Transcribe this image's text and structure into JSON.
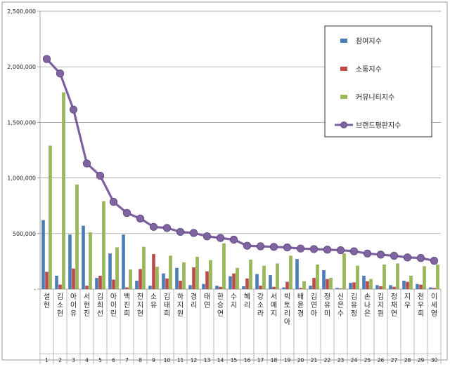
{
  "chart_data": {
    "type": "bar",
    "ylim": [
      0,
      2500000
    ],
    "yticks": [
      "-",
      "500,000",
      "1,000,000",
      "1,500,000",
      "2,000,000",
      "2,500,000"
    ],
    "grid": true,
    "legend_position": "top-right",
    "ranks": [
      "1",
      "2",
      "3",
      "4",
      "5",
      "6",
      "7",
      "8",
      "9",
      "10",
      "11",
      "12",
      "13",
      "14",
      "15",
      "16",
      "17",
      "18",
      "19",
      "20",
      "21",
      "22",
      "23",
      "24",
      "25",
      "26",
      "27",
      "28",
      "29",
      "30"
    ],
    "categories": [
      "설현",
      "김소현",
      "아이유",
      "서현진",
      "김희선",
      "아이린",
      "백진희",
      "전지현",
      "소유",
      "김태희",
      "하지원",
      "경리",
      "태연",
      "한승연",
      "수지",
      "혜리",
      "강소라",
      "서예지",
      "빅토리아",
      "배윤경",
      "김연아",
      "정유미",
      "신은수",
      "김유정",
      "손나은",
      "김지원",
      "정채연",
      "지우",
      "천우희",
      "이세영"
    ],
    "series": [
      {
        "name": "참여지수",
        "type": "bar",
        "color": "#4a7ebb",
        "values": [
          620000,
          120000,
          490000,
          570000,
          100000,
          320000,
          490000,
          75000,
          30000,
          140000,
          190000,
          35000,
          45000,
          30000,
          115000,
          25000,
          135000,
          125000,
          15000,
          270000,
          30000,
          170000,
          10000,
          55000,
          120000,
          35000,
          35000,
          75000,
          45000,
          15000
        ]
      },
      {
        "name": "소통지수",
        "type": "bar",
        "color": "#be4b48",
        "values": [
          155000,
          40000,
          185000,
          30000,
          120000,
          85000,
          15000,
          180000,
          315000,
          95000,
          75000,
          195000,
          160000,
          20000,
          140000,
          95000,
          30000,
          20000,
          65000,
          10000,
          100000,
          90000,
          5000,
          60000,
          70000,
          25000,
          20000,
          65000,
          40000,
          10000
        ]
      },
      {
        "name": "커뮤니티지수",
        "type": "bar",
        "color": "#98b954",
        "values": [
          1290000,
          1770000,
          940000,
          510000,
          790000,
          375000,
          175000,
          380000,
          200000,
          300000,
          240000,
          290000,
          260000,
          410000,
          190000,
          265000,
          210000,
          230000,
          300000,
          70000,
          220000,
          100000,
          320000,
          210000,
          90000,
          220000,
          230000,
          120000,
          205000,
          220000
        ]
      },
      {
        "name": "브랜드평판지수",
        "type": "line",
        "color": "#7d60a0",
        "values": [
          2070000,
          1940000,
          1615000,
          1130000,
          1020000,
          785000,
          685000,
          635000,
          560000,
          550000,
          515000,
          505000,
          475000,
          460000,
          445000,
          390000,
          385000,
          380000,
          375000,
          365000,
          360000,
          355000,
          350000,
          340000,
          320000,
          310000,
          300000,
          285000,
          280000,
          255000
        ]
      }
    ]
  }
}
